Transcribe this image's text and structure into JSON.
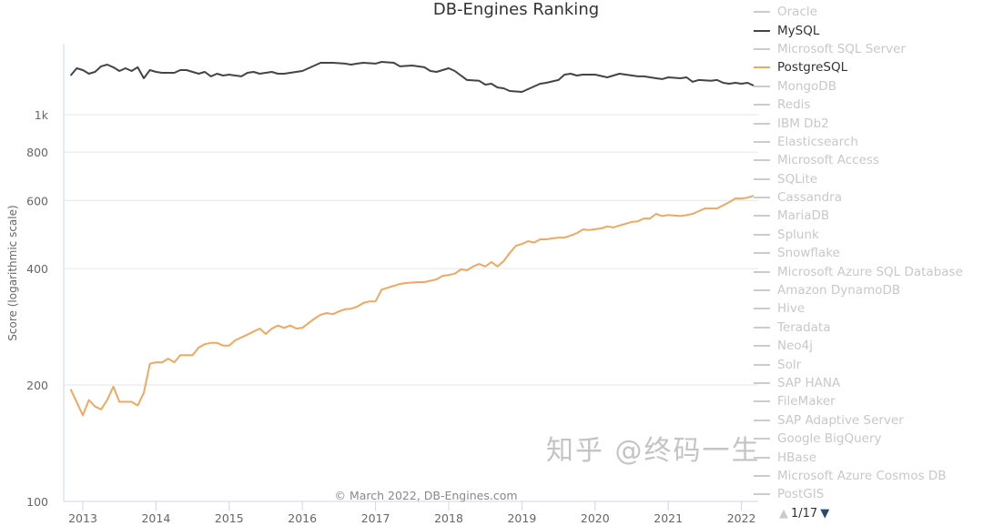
{
  "chart_data": {
    "type": "line",
    "title": "DB-Engines Ranking",
    "ylabel": "Score (logarithmic scale)",
    "xlabel": "",
    "yscale": "log",
    "ylim": [
      100,
      1520
    ],
    "xlim": [
      "2012-10",
      "2022-04"
    ],
    "yticks": [
      {
        "v": 100,
        "label": "100"
      },
      {
        "v": 200,
        "label": "200"
      },
      {
        "v": 400,
        "label": "400"
      },
      {
        "v": 600,
        "label": "600"
      },
      {
        "v": 800,
        "label": "800"
      },
      {
        "v": 1000,
        "label": "1k"
      }
    ],
    "xticks": [
      "2013",
      "2014",
      "2015",
      "2016",
      "2017",
      "2018",
      "2019",
      "2020",
      "2021",
      "2022"
    ],
    "grid": true,
    "legend_placement": "right",
    "credit": "© March 2022, DB-Engines.com",
    "series": [
      {
        "name": "MySQL",
        "color": "#434348",
        "points": [
          [
            "2012-11",
            1262
          ],
          [
            "2012-12",
            1318
          ],
          [
            "2013-01",
            1304
          ],
          [
            "2013-02",
            1276
          ],
          [
            "2013-03",
            1290
          ],
          [
            "2013-04",
            1333
          ],
          [
            "2013-05",
            1347
          ],
          [
            "2013-06",
            1326
          ],
          [
            "2013-07",
            1297
          ],
          [
            "2013-08",
            1318
          ],
          [
            "2013-09",
            1297
          ],
          [
            "2013-10",
            1326
          ],
          [
            "2013-11",
            1242
          ],
          [
            "2013-12",
            1304
          ],
          [
            "2014-01",
            1290
          ],
          [
            "2014-02",
            1283
          ],
          [
            "2014-03",
            1283
          ],
          [
            "2014-04",
            1283
          ],
          [
            "2014-05",
            1304
          ],
          [
            "2014-06",
            1304
          ],
          [
            "2014-07",
            1290
          ],
          [
            "2014-08",
            1276
          ],
          [
            "2014-09",
            1290
          ],
          [
            "2014-10",
            1256
          ],
          [
            "2014-11",
            1276
          ],
          [
            "2014-12",
            1262
          ],
          [
            "2015-01",
            1269
          ],
          [
            "2015-02",
            1262
          ],
          [
            "2015-03",
            1256
          ],
          [
            "2015-04",
            1283
          ],
          [
            "2015-05",
            1290
          ],
          [
            "2015-06",
            1276
          ],
          [
            "2015-07",
            1283
          ],
          [
            "2015-08",
            1290
          ],
          [
            "2015-09",
            1276
          ],
          [
            "2015-10",
            1276
          ],
          [
            "2015-11",
            1283
          ],
          [
            "2015-12",
            1290
          ],
          [
            "2016-01",
            1297
          ],
          [
            "2016-02",
            1318
          ],
          [
            "2016-03",
            1340
          ],
          [
            "2016-04",
            1362
          ],
          [
            "2016-05",
            1362
          ],
          [
            "2016-06",
            1362
          ],
          [
            "2016-08",
            1355
          ],
          [
            "2016-09",
            1347
          ],
          [
            "2016-10",
            1355
          ],
          [
            "2016-11",
            1362
          ],
          [
            "2017-01",
            1355
          ],
          [
            "2017-02",
            1369
          ],
          [
            "2017-04",
            1362
          ],
          [
            "2017-05",
            1333
          ],
          [
            "2017-07",
            1340
          ],
          [
            "2017-09",
            1326
          ],
          [
            "2017-10",
            1297
          ],
          [
            "2017-11",
            1290
          ],
          [
            "2018-01",
            1318
          ],
          [
            "2018-02",
            1297
          ],
          [
            "2018-03",
            1262
          ],
          [
            "2018-04",
            1229
          ],
          [
            "2018-06",
            1223
          ],
          [
            "2018-07",
            1196
          ],
          [
            "2018-08",
            1202
          ],
          [
            "2018-09",
            1176
          ],
          [
            "2018-10",
            1170
          ],
          [
            "2018-11",
            1151
          ],
          [
            "2019-01",
            1145
          ],
          [
            "2019-02",
            1164
          ],
          [
            "2019-04",
            1202
          ],
          [
            "2019-05",
            1209
          ],
          [
            "2019-07",
            1229
          ],
          [
            "2019-08",
            1269
          ],
          [
            "2019-09",
            1276
          ],
          [
            "2019-10",
            1262
          ],
          [
            "2019-11",
            1269
          ],
          [
            "2020-01",
            1269
          ],
          [
            "2020-03",
            1249
          ],
          [
            "2020-05",
            1276
          ],
          [
            "2020-08",
            1256
          ],
          [
            "2020-09",
            1256
          ],
          [
            "2020-11",
            1242
          ],
          [
            "2020-12",
            1236
          ],
          [
            "2021-01",
            1249
          ],
          [
            "2021-03",
            1242
          ],
          [
            "2021-04",
            1249
          ],
          [
            "2021-05",
            1216
          ],
          [
            "2021-06",
            1229
          ],
          [
            "2021-08",
            1223
          ],
          [
            "2021-09",
            1229
          ],
          [
            "2021-10",
            1209
          ],
          [
            "2021-11",
            1202
          ],
          [
            "2021-12",
            1209
          ],
          [
            "2022-01",
            1202
          ],
          [
            "2022-02",
            1209
          ],
          [
            "2022-03",
            1189
          ]
        ]
      },
      {
        "name": "PostgreSQL",
        "color": "#f0a861",
        "points": [
          [
            "2012-11",
            195
          ],
          [
            "2013-01",
            167
          ],
          [
            "2013-02",
            183
          ],
          [
            "2013-03",
            176
          ],
          [
            "2013-04",
            173
          ],
          [
            "2013-05",
            183
          ],
          [
            "2013-06",
            198
          ],
          [
            "2013-07",
            181
          ],
          [
            "2013-08",
            181
          ],
          [
            "2013-09",
            181
          ],
          [
            "2013-10",
            177
          ],
          [
            "2013-11",
            191
          ],
          [
            "2013-12",
            227
          ],
          [
            "2014-01",
            229
          ],
          [
            "2014-02",
            229
          ],
          [
            "2014-03",
            234
          ],
          [
            "2014-04",
            229
          ],
          [
            "2014-05",
            239
          ],
          [
            "2014-07",
            239
          ],
          [
            "2014-08",
            250
          ],
          [
            "2014-09",
            255
          ],
          [
            "2014-10",
            257
          ],
          [
            "2014-11",
            257
          ],
          [
            "2014-12",
            253
          ],
          [
            "2015-01",
            253
          ],
          [
            "2015-02",
            261
          ],
          [
            "2015-04",
            270
          ],
          [
            "2015-06",
            280
          ],
          [
            "2015-07",
            271
          ],
          [
            "2015-08",
            280
          ],
          [
            "2015-09",
            285
          ],
          [
            "2015-10",
            281
          ],
          [
            "2015-11",
            285
          ],
          [
            "2015-12",
            280
          ],
          [
            "2016-01",
            281
          ],
          [
            "2016-02",
            289
          ],
          [
            "2016-03",
            297
          ],
          [
            "2016-04",
            304
          ],
          [
            "2016-05",
            307
          ],
          [
            "2016-06",
            305
          ],
          [
            "2016-07",
            310
          ],
          [
            "2016-08",
            314
          ],
          [
            "2016-09",
            315
          ],
          [
            "2016-10",
            319
          ],
          [
            "2016-11",
            326
          ],
          [
            "2016-12",
            329
          ],
          [
            "2017-01",
            329
          ],
          [
            "2017-02",
            353
          ],
          [
            "2017-04",
            361
          ],
          [
            "2017-05",
            365
          ],
          [
            "2017-06",
            367
          ],
          [
            "2017-08",
            369
          ],
          [
            "2017-09",
            369
          ],
          [
            "2017-11",
            375
          ],
          [
            "2017-12",
            383
          ],
          [
            "2018-01",
            385
          ],
          [
            "2018-02",
            388
          ],
          [
            "2018-03",
            398
          ],
          [
            "2018-04",
            396
          ],
          [
            "2018-05",
            405
          ],
          [
            "2018-06",
            411
          ],
          [
            "2018-07",
            405
          ],
          [
            "2018-08",
            416
          ],
          [
            "2018-09",
            405
          ],
          [
            "2018-10",
            418
          ],
          [
            "2018-11",
            439
          ],
          [
            "2018-12",
            458
          ],
          [
            "2019-01",
            463
          ],
          [
            "2019-02",
            471
          ],
          [
            "2019-03",
            467
          ],
          [
            "2019-04",
            476
          ],
          [
            "2019-05",
            476
          ],
          [
            "2019-06",
            479
          ],
          [
            "2019-07",
            481
          ],
          [
            "2019-08",
            481
          ],
          [
            "2019-09",
            487
          ],
          [
            "2019-10",
            494
          ],
          [
            "2019-11",
            505
          ],
          [
            "2019-12",
            503
          ],
          [
            "2020-02",
            508
          ],
          [
            "2020-03",
            514
          ],
          [
            "2020-04",
            511
          ],
          [
            "2020-05",
            517
          ],
          [
            "2020-07",
            528
          ],
          [
            "2020-08",
            530
          ],
          [
            "2020-09",
            539
          ],
          [
            "2020-10",
            539
          ],
          [
            "2020-11",
            554
          ],
          [
            "2020-12",
            547
          ],
          [
            "2021-01",
            550
          ],
          [
            "2021-03",
            547
          ],
          [
            "2021-04",
            550
          ],
          [
            "2021-05",
            554
          ],
          [
            "2021-06",
            563
          ],
          [
            "2021-07",
            572
          ],
          [
            "2021-08",
            572
          ],
          [
            "2021-09",
            572
          ],
          [
            "2021-11",
            594
          ],
          [
            "2021-12",
            607
          ],
          [
            "2022-01",
            607
          ],
          [
            "2022-02",
            610
          ],
          [
            "2022-03",
            617
          ]
        ]
      }
    ]
  },
  "legend": {
    "items": [
      {
        "label": "Oracle",
        "active": false
      },
      {
        "label": "MySQL",
        "active": true,
        "color": "#434348"
      },
      {
        "label": "Microsoft SQL Server",
        "active": false
      },
      {
        "label": "PostgreSQL",
        "active": true,
        "color": "#f0a861"
      },
      {
        "label": "MongoDB",
        "active": false
      },
      {
        "label": "Redis",
        "active": false
      },
      {
        "label": "IBM Db2",
        "active": false
      },
      {
        "label": "Elasticsearch",
        "active": false
      },
      {
        "label": "Microsoft Access",
        "active": false
      },
      {
        "label": "SQLite",
        "active": false
      },
      {
        "label": "Cassandra",
        "active": false
      },
      {
        "label": "MariaDB",
        "active": false
      },
      {
        "label": "Splunk",
        "active": false
      },
      {
        "label": "Snowflake",
        "active": false
      },
      {
        "label": "Microsoft Azure SQL Database",
        "active": false
      },
      {
        "label": "Amazon DynamoDB",
        "active": false
      },
      {
        "label": "Hive",
        "active": false
      },
      {
        "label": "Teradata",
        "active": false
      },
      {
        "label": "Neo4j",
        "active": false
      },
      {
        "label": "Solr",
        "active": false
      },
      {
        "label": "SAP HANA",
        "active": false
      },
      {
        "label": "FileMaker",
        "active": false
      },
      {
        "label": "SAP Adaptive Server",
        "active": false
      },
      {
        "label": "Google BigQuery",
        "active": false
      },
      {
        "label": "HBase",
        "active": false
      },
      {
        "label": "Microsoft Azure Cosmos DB",
        "active": false
      },
      {
        "label": "PostGIS",
        "active": false
      }
    ],
    "pager": {
      "text": "1/17",
      "up_icon": "triangle-up-icon",
      "down_icon": "triangle-down-icon",
      "up_color": "#cccccc",
      "down_color": "#274b6d"
    }
  },
  "watermark": "知乎 @终码一生"
}
